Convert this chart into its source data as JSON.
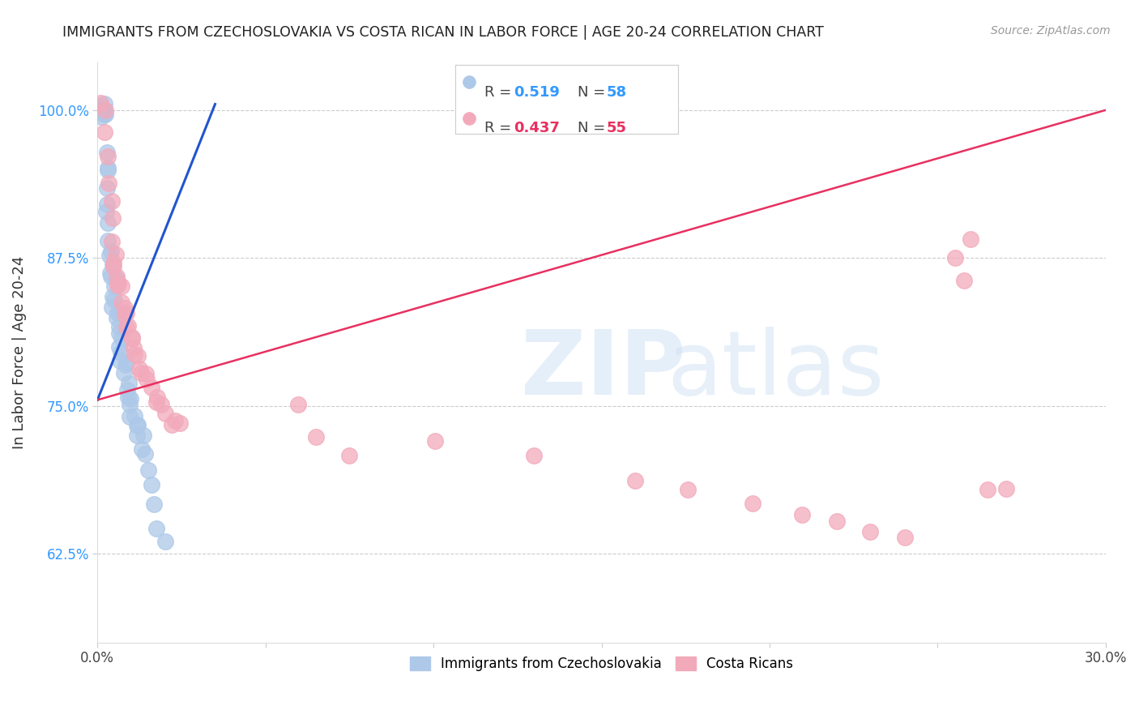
{
  "title": "IMMIGRANTS FROM CZECHOSLOVAKIA VS COSTA RICAN IN LABOR FORCE | AGE 20-24 CORRELATION CHART",
  "source": "Source: ZipAtlas.com",
  "ylabel": "In Labor Force | Age 20-24",
  "xlim": [
    0.0,
    0.3
  ],
  "ylim": [
    0.55,
    1.04
  ],
  "xticks": [
    0.0,
    0.05,
    0.1,
    0.15,
    0.2,
    0.25,
    0.3
  ],
  "xticklabels": [
    "0.0%",
    "",
    "",
    "",
    "",
    "",
    "30.0%"
  ],
  "yticks": [
    0.625,
    0.75,
    0.875,
    1.0
  ],
  "yticklabels": [
    "62.5%",
    "75.0%",
    "87.5%",
    "100.0%"
  ],
  "blue_R": "0.519",
  "blue_N": "58",
  "pink_R": "0.437",
  "pink_N": "55",
  "blue_color": "#adc8e8",
  "pink_color": "#f2aabb",
  "blue_line_color": "#2255cc",
  "pink_line_color": "#e83060",
  "legend_blue_label": "Immigrants from Czechoslovakia",
  "legend_pink_label": "Costa Ricans",
  "blue_line_x": [
    0.0,
    0.035
  ],
  "blue_line_y": [
    0.755,
    1.005
  ],
  "pink_line_x": [
    0.0,
    0.3
  ],
  "pink_line_y": [
    0.755,
    1.0
  ],
  "blue_scatter_x": [
    0.001,
    0.001,
    0.001,
    0.001,
    0.002,
    0.002,
    0.002,
    0.002,
    0.002,
    0.002,
    0.003,
    0.003,
    0.003,
    0.003,
    0.003,
    0.003,
    0.003,
    0.003,
    0.004,
    0.004,
    0.004,
    0.004,
    0.004,
    0.005,
    0.005,
    0.005,
    0.005,
    0.005,
    0.006,
    0.006,
    0.006,
    0.006,
    0.007,
    0.007,
    0.007,
    0.007,
    0.007,
    0.008,
    0.008,
    0.008,
    0.009,
    0.009,
    0.009,
    0.01,
    0.01,
    0.01,
    0.011,
    0.011,
    0.012,
    0.012,
    0.013,
    0.013,
    0.014,
    0.015,
    0.016,
    0.017,
    0.018,
    0.02
  ],
  "blue_scatter_y": [
    1.0,
    1.0,
    1.0,
    1.0,
    1.0,
    1.0,
    1.0,
    1.0,
    1.0,
    1.0,
    0.965,
    0.955,
    0.945,
    0.935,
    0.92,
    0.91,
    0.9,
    0.89,
    0.88,
    0.875,
    0.87,
    0.865,
    0.86,
    0.855,
    0.85,
    0.845,
    0.84,
    0.835,
    0.83,
    0.825,
    0.82,
    0.815,
    0.81,
    0.805,
    0.8,
    0.795,
    0.79,
    0.785,
    0.78,
    0.775,
    0.77,
    0.765,
    0.76,
    0.755,
    0.75,
    0.745,
    0.74,
    0.735,
    0.73,
    0.725,
    0.72,
    0.715,
    0.71,
    0.695,
    0.68,
    0.665,
    0.65,
    0.635
  ],
  "pink_scatter_x": [
    0.001,
    0.002,
    0.002,
    0.003,
    0.003,
    0.004,
    0.004,
    0.004,
    0.005,
    0.005,
    0.005,
    0.006,
    0.006,
    0.006,
    0.007,
    0.007,
    0.008,
    0.008,
    0.008,
    0.009,
    0.009,
    0.01,
    0.01,
    0.011,
    0.011,
    0.012,
    0.013,
    0.013,
    0.014,
    0.015,
    0.016,
    0.017,
    0.018,
    0.019,
    0.02,
    0.022,
    0.023,
    0.025,
    0.06,
    0.065,
    0.075,
    0.1,
    0.13,
    0.16,
    0.175,
    0.195,
    0.21,
    0.22,
    0.23,
    0.24,
    0.255,
    0.258,
    0.26,
    0.265,
    0.27
  ],
  "pink_scatter_y": [
    1.0,
    1.0,
    0.98,
    0.96,
    0.94,
    0.925,
    0.91,
    0.895,
    0.88,
    0.87,
    0.865,
    0.86,
    0.855,
    0.85,
    0.845,
    0.84,
    0.835,
    0.83,
    0.825,
    0.82,
    0.815,
    0.81,
    0.805,
    0.8,
    0.795,
    0.79,
    0.785,
    0.78,
    0.775,
    0.77,
    0.765,
    0.76,
    0.755,
    0.75,
    0.745,
    0.74,
    0.735,
    0.73,
    0.75,
    0.72,
    0.71,
    0.72,
    0.71,
    0.69,
    0.68,
    0.67,
    0.66,
    0.655,
    0.645,
    0.64,
    0.875,
    0.86,
    0.89,
    0.685,
    0.68
  ]
}
